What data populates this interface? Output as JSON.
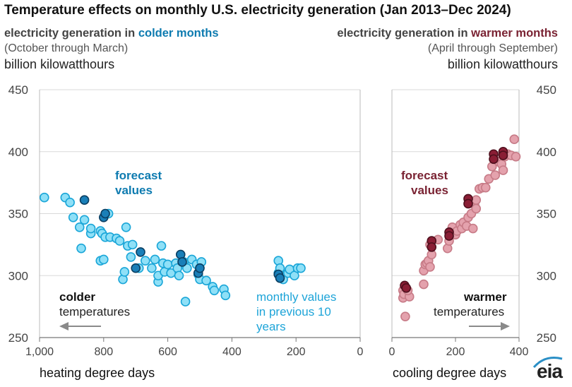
{
  "title": "Temperature effects on monthly U.S. electricity generation (Jan 2013–Dec 2024)",
  "left_header": {
    "prefix": "electricity generation in ",
    "highlight": "colder months",
    "months": "(October through March)",
    "unit": "billion kilowatthours"
  },
  "right_header": {
    "prefix": "electricity generation in ",
    "highlight": "warmer months",
    "months": "(April through September)",
    "unit": "billion kilowatthours"
  },
  "annotations": {
    "forecast_left_1": "forecast",
    "forecast_left_2": "values",
    "forecast_right_1": "forecast",
    "forecast_right_2": "values",
    "monthly_1": "monthly values",
    "monthly_2": "in previous 10",
    "monthly_3": "years",
    "colder_bold": "colder",
    "colder_sub": "temperatures",
    "warmer_bold": "warmer",
    "warmer_sub": "temperatures"
  },
  "logo": "eia",
  "colors": {
    "cold_past": "#8fe0f7",
    "cold_past_stroke": "#1aa6d8",
    "cold_forecast": "#1a7fb8",
    "cold_forecast_stroke": "#0a3f62",
    "cold_text": "#0e7bb0",
    "cold_text_light": "#1da4d8",
    "warm_past": "#e4a2ad",
    "warm_past_stroke": "#c77b87",
    "warm_forecast": "#8a1e35",
    "warm_forecast_stroke": "#4f0f1d",
    "warm_text": "#7a2333",
    "grid": "#d9d9d9",
    "arrow": "#8a8a8a"
  },
  "chart_data": [
    {
      "type": "scatter",
      "title": "electricity generation in colder months",
      "xlabel": "heating degree days",
      "ylabel": "billion kilowatthours",
      "xlim": [
        1000,
        0
      ],
      "ylim": [
        250,
        450
      ],
      "x_ticks": [
        1000,
        800,
        600,
        400,
        200,
        0
      ],
      "x_tick_labels": [
        "1,000",
        "800",
        "600",
        "400",
        "200",
        "0"
      ],
      "y_ticks": [
        250,
        300,
        350,
        400,
        450
      ],
      "series": [
        {
          "name": "monthly values in previous 10 years",
          "points": [
            [
              985,
              363
            ],
            [
              920,
              363
            ],
            [
              905,
              359
            ],
            [
              895,
              347
            ],
            [
              875,
              339
            ],
            [
              870,
              322
            ],
            [
              860,
              345
            ],
            [
              810,
              312
            ],
            [
              800,
              313
            ],
            [
              840,
              334
            ],
            [
              840,
              338
            ],
            [
              810,
              336
            ],
            [
              805,
              334
            ],
            [
              795,
              331
            ],
            [
              785,
              350
            ],
            [
              780,
              331
            ],
            [
              760,
              330
            ],
            [
              750,
              328
            ],
            [
              740,
              297
            ],
            [
              735,
              303
            ],
            [
              730,
              339
            ],
            [
              725,
              324
            ],
            [
              715,
              315
            ],
            [
              710,
              325
            ],
            [
              690,
              306
            ],
            [
              670,
              312
            ],
            [
              650,
              306
            ],
            [
              640,
              313
            ],
            [
              630,
              295
            ],
            [
              630,
              300
            ],
            [
              620,
              324
            ],
            [
              615,
              310
            ],
            [
              610,
              303
            ],
            [
              600,
              309
            ],
            [
              590,
              302
            ],
            [
              575,
              310
            ],
            [
              570,
              306
            ],
            [
              565,
              300
            ],
            [
              550,
              311
            ],
            [
              545,
              279
            ],
            [
              540,
              306
            ],
            [
              525,
              313
            ],
            [
              510,
              309
            ],
            [
              505,
              301
            ],
            [
              500,
              297
            ],
            [
              495,
              311
            ],
            [
              480,
              296
            ],
            [
              460,
              291
            ],
            [
              455,
              288
            ],
            [
              425,
              289
            ],
            [
              420,
              284
            ],
            [
              255,
              312
            ],
            [
              255,
              302
            ],
            [
              250,
              306
            ],
            [
              245,
              300
            ],
            [
              240,
              297
            ],
            [
              225,
              302
            ],
            [
              220,
              305
            ],
            [
              205,
              300
            ],
            [
              195,
              306
            ],
            [
              185,
              306
            ]
          ]
        },
        {
          "name": "forecast values",
          "points": [
            [
              860,
              361
            ],
            [
              800,
              347
            ],
            [
              795,
              350
            ],
            [
              700,
              306
            ],
            [
              685,
              319
            ],
            [
              560,
              317
            ],
            [
              555,
              311
            ],
            [
              505,
              302
            ],
            [
              500,
              306
            ],
            [
              255,
              301
            ],
            [
              250,
              298
            ]
          ]
        }
      ]
    },
    {
      "type": "scatter",
      "title": "electricity generation in warmer months",
      "xlabel": "cooling degree days",
      "ylabel": "billion kilowatthours",
      "xlim": [
        0,
        400
      ],
      "ylim": [
        250,
        450
      ],
      "x_ticks": [
        0,
        200,
        400
      ],
      "x_tick_labels": [
        "0",
        "200",
        "400"
      ],
      "y_ticks": [
        250,
        300,
        350,
        400,
        450
      ],
      "series": [
        {
          "name": "monthly values in previous 10 years",
          "points": [
            [
              35,
              288
            ],
            [
              35,
              282
            ],
            [
              38,
              285
            ],
            [
              42,
              267
            ],
            [
              55,
              283
            ],
            [
              50,
              288
            ],
            [
              100,
              293
            ],
            [
              100,
              304
            ],
            [
              105,
              309
            ],
            [
              110,
              310
            ],
            [
              115,
              312
            ],
            [
              120,
              307
            ],
            [
              125,
              317
            ],
            [
              120,
              325
            ],
            [
              145,
              329
            ],
            [
              175,
              322
            ],
            [
              180,
              328
            ],
            [
              190,
              339
            ],
            [
              195,
              334
            ],
            [
              200,
              333
            ],
            [
              205,
              336
            ],
            [
              215,
              341
            ],
            [
              220,
              338
            ],
            [
              225,
              343
            ],
            [
              235,
              340
            ],
            [
              240,
              347
            ],
            [
              250,
              350
            ],
            [
              255,
              338
            ],
            [
              260,
              357
            ],
            [
              265,
              361
            ],
            [
              265,
              354
            ],
            [
              275,
              370
            ],
            [
              285,
              371
            ],
            [
              295,
              371
            ],
            [
              305,
              378
            ],
            [
              315,
              388
            ],
            [
              325,
              381
            ],
            [
              335,
              392
            ],
            [
              345,
              390
            ],
            [
              350,
              385
            ],
            [
              355,
              396
            ],
            [
              365,
              398
            ],
            [
              375,
              397
            ],
            [
              385,
              410
            ],
            [
              390,
              396
            ]
          ]
        },
        {
          "name": "forecast values",
          "points": [
            [
              40,
              292
            ],
            [
              45,
              290
            ],
            [
              125,
              328
            ],
            [
              125,
              323
            ],
            [
              180,
              335
            ],
            [
              180,
              332
            ],
            [
              240,
              362
            ],
            [
              240,
              358
            ],
            [
              320,
              398
            ],
            [
              320,
              394
            ],
            [
              350,
              400
            ],
            [
              350,
              397
            ]
          ]
        }
      ]
    }
  ]
}
